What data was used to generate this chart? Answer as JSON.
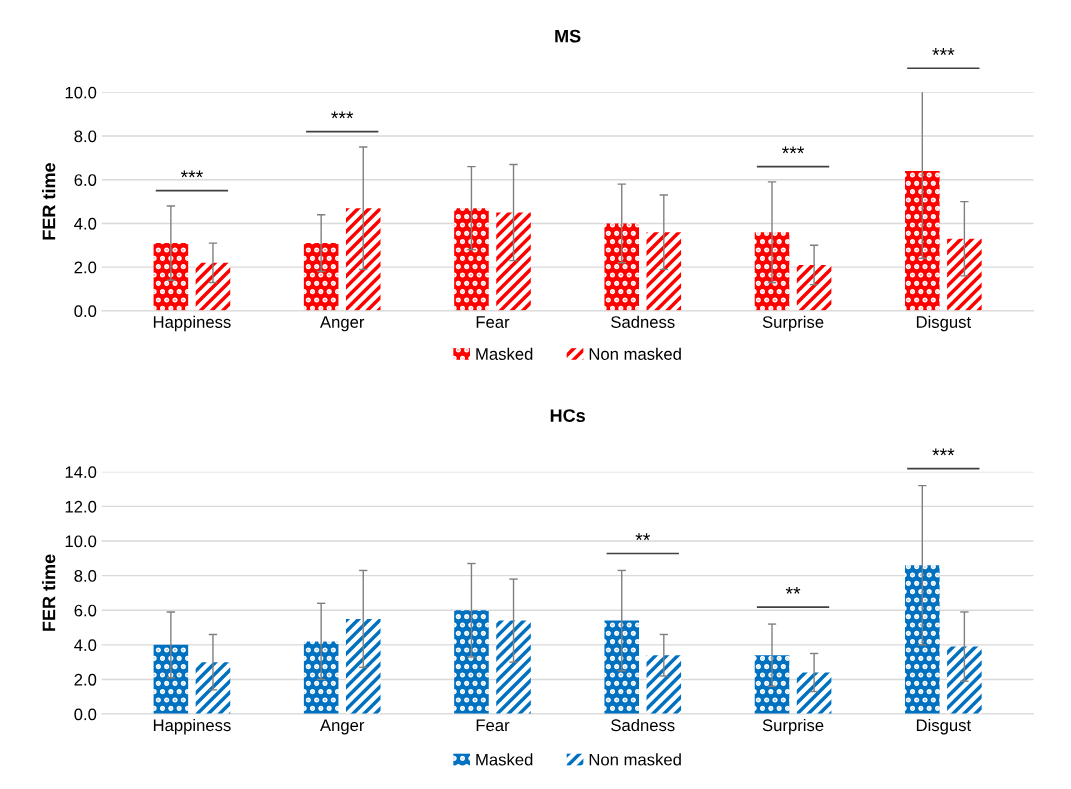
{
  "chart_data": [
    {
      "type": "bar",
      "title": "MS",
      "ylabel": "FER time",
      "categories": [
        "Happiness",
        "Anger",
        "Fear",
        "Sadness",
        "Surprise",
        "Disgust"
      ],
      "series": [
        {
          "name": "Masked",
          "color": "#ff0000",
          "values": [
            3.1,
            3.1,
            4.7,
            4.0,
            3.6,
            6.4
          ],
          "errors": [
            1.7,
            1.3,
            1.9,
            1.8,
            2.3,
            4.0
          ]
        },
        {
          "name": "Non masked",
          "color": "#ff0000",
          "values": [
            2.2,
            4.7,
            4.5,
            3.6,
            2.1,
            3.3
          ],
          "errors": [
            0.9,
            2.8,
            2.2,
            1.7,
            0.9,
            1.7
          ]
        }
      ],
      "ylim": [
        0,
        10
      ],
      "yticks": [
        {
          "value": 0,
          "label": "0.0"
        },
        {
          "value": 2,
          "label": "2.0"
        },
        {
          "value": 4,
          "label": "4.0"
        },
        {
          "value": 6,
          "label": "6.0"
        },
        {
          "value": 8,
          "label": "8.0"
        },
        {
          "value": 10,
          "label": "10.0"
        }
      ],
      "grid": "y",
      "legend": "bottom",
      "annotations": [
        "***",
        "***",
        "***",
        "***"
      ]
    },
    {
      "type": "bar",
      "title": "HCs",
      "ylabel": "FER time",
      "categories": [
        "Happiness",
        "Anger",
        "Fear",
        "Sadness",
        "Surprise",
        "Disgust"
      ],
      "series": [
        {
          "name": "Masked",
          "color": "#0070c0",
          "values": [
            4.0,
            4.2,
            6.0,
            5.4,
            3.4,
            8.6
          ],
          "errors": [
            1.9,
            2.2,
            2.7,
            2.9,
            1.8,
            4.6
          ]
        },
        {
          "name": "Non masked",
          "color": "#0070c0",
          "values": [
            3.0,
            5.5,
            5.4,
            3.4,
            2.4,
            3.9
          ],
          "errors": [
            1.6,
            2.8,
            2.4,
            1.2,
            1.1,
            2.0
          ]
        }
      ],
      "ylim": [
        0,
        14
      ],
      "yticks": [
        {
          "value": 0,
          "label": "0.0"
        },
        {
          "value": 2,
          "label": "2.0"
        },
        {
          "value": 4,
          "label": "4.0"
        },
        {
          "value": 6,
          "label": "6.0"
        },
        {
          "value": 8,
          "label": "8.0"
        },
        {
          "value": 10,
          "label": "10.0"
        },
        {
          "value": 12,
          "label": "12.0"
        },
        {
          "value": 14,
          "label": "14.0"
        }
      ],
      "grid": "y",
      "legend": "bottom",
      "annotations": [
        "**",
        "**",
        "***"
      ]
    }
  ]
}
